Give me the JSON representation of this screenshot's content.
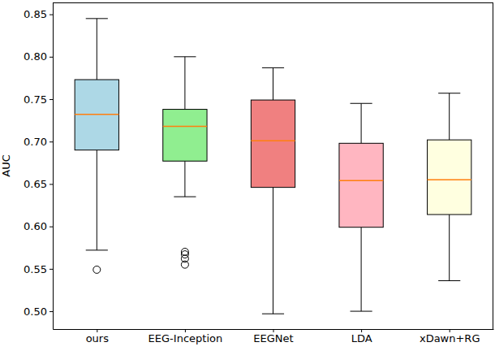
{
  "chart_data": {
    "type": "box",
    "y_label": "AUC",
    "categories": [
      "ours",
      "EEG-Inception",
      "EEGNet",
      "LDA",
      "xDawn+RG"
    ],
    "whisker_low": [
      0.572,
      0.635,
      0.497,
      0.5,
      0.536
    ],
    "q1": [
      0.69,
      0.677,
      0.646,
      0.599,
      0.614
    ],
    "median": [
      0.732,
      0.718,
      0.701,
      0.654,
      0.655
    ],
    "q3": [
      0.773,
      0.738,
      0.749,
      0.698,
      0.702
    ],
    "whisker_high": [
      0.845,
      0.8,
      0.787,
      0.745,
      0.757
    ],
    "outliers": [
      [
        0.549
      ],
      [
        0.57,
        0.567,
        0.562,
        0.555
      ],
      [],
      [],
      []
    ],
    "colors": [
      "#add8e6",
      "#90ee90",
      "#f08080",
      "#ffb6c1",
      "#ffffe0"
    ],
    "ylim": [
      0.479,
      0.864
    ],
    "yticks": [
      {
        "value": 0.5,
        "label": "0.50"
      },
      0.55,
      {
        "value": 0.6,
        "label": "0.60"
      },
      0.65,
      {
        "value": 0.7,
        "label": "0.70"
      },
      0.75,
      {
        "value": 0.8,
        "label": "0.80"
      },
      0.85
    ],
    "grid": false
  }
}
